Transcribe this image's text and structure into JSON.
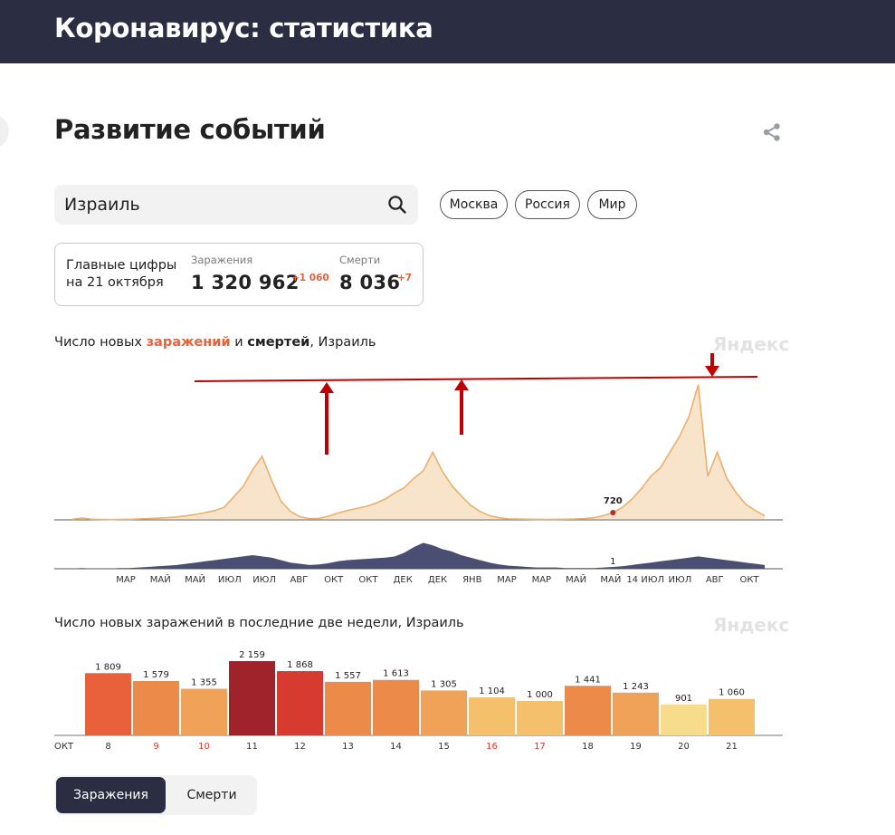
{
  "header": {
    "title": "Коронавирус: статистика"
  },
  "section": {
    "title": "Развитие событий",
    "share_icon": "share-icon"
  },
  "search": {
    "value": "Израиль",
    "icon": "search-icon"
  },
  "regions": [
    "Москва",
    "Россия",
    "Мир"
  ],
  "main_figures": {
    "label_line1": "Главные цифры",
    "label_line2": "на 21 октября",
    "infections": {
      "caption": "Заражения",
      "value": "1 320 962",
      "delta": "+1 060"
    },
    "deaths": {
      "caption": "Смерти",
      "value": "8 036",
      "delta": "+7"
    }
  },
  "timeline_caption": {
    "prefix": "Число новых ",
    "infections": "заражений",
    "middle": " и ",
    "deaths": "смертей",
    "suffix": ", Израиль"
  },
  "watermark": "Яндекс",
  "colors": {
    "header_bg": "#2b2d42",
    "infections": "#e8613a",
    "infections_area": "#ecb06a",
    "deaths_area": "#4a4e72",
    "annotation": "#c00000"
  },
  "chart_data": [
    {
      "type": "area",
      "series": [
        {
          "name": "заражений",
          "values": [
            5,
            18,
            6,
            4,
            3,
            4,
            5,
            8,
            12,
            16,
            22,
            28,
            38,
            52,
            70,
            90,
            120,
            220,
            320,
            480,
            610,
            380,
            180,
            80,
            30,
            12,
            14,
            35,
            65,
            90,
            110,
            130,
            160,
            200,
            260,
            310,
            400,
            470,
            650,
            470,
            330,
            230,
            140,
            80,
            40,
            20,
            10,
            8,
            6,
            5,
            4,
            5,
            6,
            8,
            12,
            20,
            40,
            70,
            120,
            200,
            300,
            420,
            500,
            650,
            800,
            990,
            1300,
            420,
            650,
            400,
            260,
            150,
            90,
            40
          ]
        },
        {
          "name": "смертей",
          "values": [
            0.5,
            1,
            0.5,
            0.5,
            0.5,
            1,
            1,
            2,
            3,
            4,
            5,
            6,
            8,
            10,
            12,
            14,
            16,
            18,
            20,
            22,
            20,
            18,
            14,
            10,
            8,
            6,
            7,
            9,
            12,
            14,
            15,
            16,
            17,
            18,
            20,
            26,
            35,
            42,
            38,
            32,
            28,
            22,
            18,
            14,
            10,
            7,
            5,
            4,
            3,
            2,
            2,
            2,
            1,
            1,
            1,
            1,
            2,
            3,
            4,
            6,
            8,
            10,
            12,
            14,
            16,
            18,
            20,
            18,
            16,
            14,
            12,
            10,
            8,
            6
          ]
        }
      ],
      "x_ticks": [
        "МАР",
        "МАЙ",
        "МАЙ",
        "ИЮЛ",
        "ИЮЛ",
        "АВГ",
        "ОКТ",
        "ОКТ",
        "ДЕК",
        "ДЕК",
        "ЯНВ",
        "МАР",
        "МАР",
        "МАЙ",
        "МАЙ",
        "14 ИЮЛ",
        "ИЮЛ",
        "АВГ",
        "ОКТ"
      ],
      "annotations": [
        {
          "label": "720"
        },
        {
          "label": "1"
        }
      ]
    },
    {
      "type": "bar",
      "title": "Число новых заражений в последние две недели, Израиль",
      "x_label": "ОКТ",
      "categories": [
        "8",
        "9",
        "10",
        "11",
        "12",
        "13",
        "14",
        "15",
        "16",
        "17",
        "18",
        "19",
        "20",
        "21"
      ],
      "weekend": [
        "9",
        "10",
        "16",
        "17"
      ],
      "values": [
        1809,
        1579,
        1355,
        2159,
        1868,
        1557,
        1613,
        1305,
        1104,
        1000,
        1441,
        1243,
        901,
        1060
      ],
      "value_labels": [
        "1 809",
        "1 579",
        "1 355",
        "2 159",
        "1 868",
        "1 557",
        "1 613",
        "1 305",
        "1 104",
        "1 000",
        "1 441",
        "1 243",
        "901",
        "1 060"
      ]
    }
  ],
  "toggle": {
    "active": "Заражения",
    "inactive": "Смерти"
  }
}
